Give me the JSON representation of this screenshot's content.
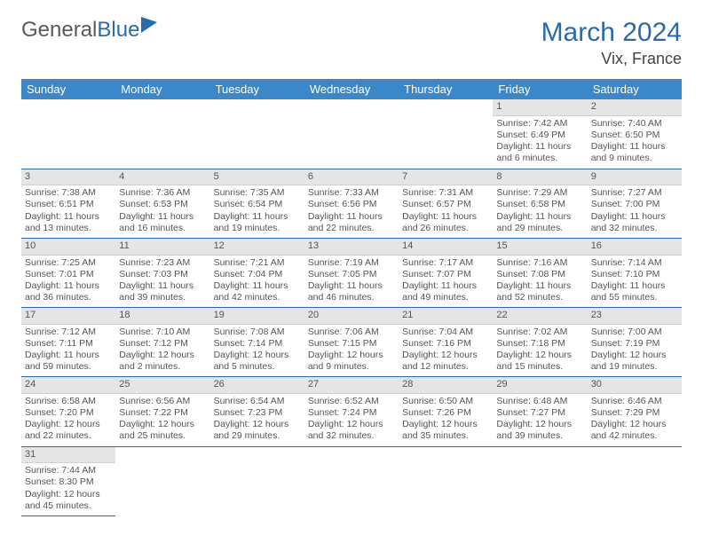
{
  "logo": {
    "text1": "General",
    "text2": "Blue"
  },
  "header": {
    "title": "March 2024",
    "location": "Vix, France"
  },
  "colors": {
    "header_bg": "#3b87c8",
    "header_text": "#ffffff",
    "daynum_bg": "#e5e5e5",
    "rule": "#2b6aa8",
    "body_text": "#555555",
    "title_color": "#2b6aa8"
  },
  "weekdays": [
    "Sunday",
    "Monday",
    "Tuesday",
    "Wednesday",
    "Thursday",
    "Friday",
    "Saturday"
  ],
  "weeks": [
    [
      null,
      null,
      null,
      null,
      null,
      {
        "n": "1",
        "sr": "Sunrise: 7:42 AM",
        "ss": "Sunset: 6:49 PM",
        "dl": "Daylight: 11 hours and 6 minutes."
      },
      {
        "n": "2",
        "sr": "Sunrise: 7:40 AM",
        "ss": "Sunset: 6:50 PM",
        "dl": "Daylight: 11 hours and 9 minutes."
      }
    ],
    [
      {
        "n": "3",
        "sr": "Sunrise: 7:38 AM",
        "ss": "Sunset: 6:51 PM",
        "dl": "Daylight: 11 hours and 13 minutes."
      },
      {
        "n": "4",
        "sr": "Sunrise: 7:36 AM",
        "ss": "Sunset: 6:53 PM",
        "dl": "Daylight: 11 hours and 16 minutes."
      },
      {
        "n": "5",
        "sr": "Sunrise: 7:35 AM",
        "ss": "Sunset: 6:54 PM",
        "dl": "Daylight: 11 hours and 19 minutes."
      },
      {
        "n": "6",
        "sr": "Sunrise: 7:33 AM",
        "ss": "Sunset: 6:56 PM",
        "dl": "Daylight: 11 hours and 22 minutes."
      },
      {
        "n": "7",
        "sr": "Sunrise: 7:31 AM",
        "ss": "Sunset: 6:57 PM",
        "dl": "Daylight: 11 hours and 26 minutes."
      },
      {
        "n": "8",
        "sr": "Sunrise: 7:29 AM",
        "ss": "Sunset: 6:58 PM",
        "dl": "Daylight: 11 hours and 29 minutes."
      },
      {
        "n": "9",
        "sr": "Sunrise: 7:27 AM",
        "ss": "Sunset: 7:00 PM",
        "dl": "Daylight: 11 hours and 32 minutes."
      }
    ],
    [
      {
        "n": "10",
        "sr": "Sunrise: 7:25 AM",
        "ss": "Sunset: 7:01 PM",
        "dl": "Daylight: 11 hours and 36 minutes."
      },
      {
        "n": "11",
        "sr": "Sunrise: 7:23 AM",
        "ss": "Sunset: 7:03 PM",
        "dl": "Daylight: 11 hours and 39 minutes."
      },
      {
        "n": "12",
        "sr": "Sunrise: 7:21 AM",
        "ss": "Sunset: 7:04 PM",
        "dl": "Daylight: 11 hours and 42 minutes."
      },
      {
        "n": "13",
        "sr": "Sunrise: 7:19 AM",
        "ss": "Sunset: 7:05 PM",
        "dl": "Daylight: 11 hours and 46 minutes."
      },
      {
        "n": "14",
        "sr": "Sunrise: 7:17 AM",
        "ss": "Sunset: 7:07 PM",
        "dl": "Daylight: 11 hours and 49 minutes."
      },
      {
        "n": "15",
        "sr": "Sunrise: 7:16 AM",
        "ss": "Sunset: 7:08 PM",
        "dl": "Daylight: 11 hours and 52 minutes."
      },
      {
        "n": "16",
        "sr": "Sunrise: 7:14 AM",
        "ss": "Sunset: 7:10 PM",
        "dl": "Daylight: 11 hours and 55 minutes."
      }
    ],
    [
      {
        "n": "17",
        "sr": "Sunrise: 7:12 AM",
        "ss": "Sunset: 7:11 PM",
        "dl": "Daylight: 11 hours and 59 minutes."
      },
      {
        "n": "18",
        "sr": "Sunrise: 7:10 AM",
        "ss": "Sunset: 7:12 PM",
        "dl": "Daylight: 12 hours and 2 minutes."
      },
      {
        "n": "19",
        "sr": "Sunrise: 7:08 AM",
        "ss": "Sunset: 7:14 PM",
        "dl": "Daylight: 12 hours and 5 minutes."
      },
      {
        "n": "20",
        "sr": "Sunrise: 7:06 AM",
        "ss": "Sunset: 7:15 PM",
        "dl": "Daylight: 12 hours and 9 minutes."
      },
      {
        "n": "21",
        "sr": "Sunrise: 7:04 AM",
        "ss": "Sunset: 7:16 PM",
        "dl": "Daylight: 12 hours and 12 minutes."
      },
      {
        "n": "22",
        "sr": "Sunrise: 7:02 AM",
        "ss": "Sunset: 7:18 PM",
        "dl": "Daylight: 12 hours and 15 minutes."
      },
      {
        "n": "23",
        "sr": "Sunrise: 7:00 AM",
        "ss": "Sunset: 7:19 PM",
        "dl": "Daylight: 12 hours and 19 minutes."
      }
    ],
    [
      {
        "n": "24",
        "sr": "Sunrise: 6:58 AM",
        "ss": "Sunset: 7:20 PM",
        "dl": "Daylight: 12 hours and 22 minutes."
      },
      {
        "n": "25",
        "sr": "Sunrise: 6:56 AM",
        "ss": "Sunset: 7:22 PM",
        "dl": "Daylight: 12 hours and 25 minutes."
      },
      {
        "n": "26",
        "sr": "Sunrise: 6:54 AM",
        "ss": "Sunset: 7:23 PM",
        "dl": "Daylight: 12 hours and 29 minutes."
      },
      {
        "n": "27",
        "sr": "Sunrise: 6:52 AM",
        "ss": "Sunset: 7:24 PM",
        "dl": "Daylight: 12 hours and 32 minutes."
      },
      {
        "n": "28",
        "sr": "Sunrise: 6:50 AM",
        "ss": "Sunset: 7:26 PM",
        "dl": "Daylight: 12 hours and 35 minutes."
      },
      {
        "n": "29",
        "sr": "Sunrise: 6:48 AM",
        "ss": "Sunset: 7:27 PM",
        "dl": "Daylight: 12 hours and 39 minutes."
      },
      {
        "n": "30",
        "sr": "Sunrise: 6:46 AM",
        "ss": "Sunset: 7:29 PM",
        "dl": "Daylight: 12 hours and 42 minutes."
      }
    ],
    [
      {
        "n": "31",
        "sr": "Sunrise: 7:44 AM",
        "ss": "Sunset: 8:30 PM",
        "dl": "Daylight: 12 hours and 45 minutes."
      },
      null,
      null,
      null,
      null,
      null,
      null
    ]
  ]
}
